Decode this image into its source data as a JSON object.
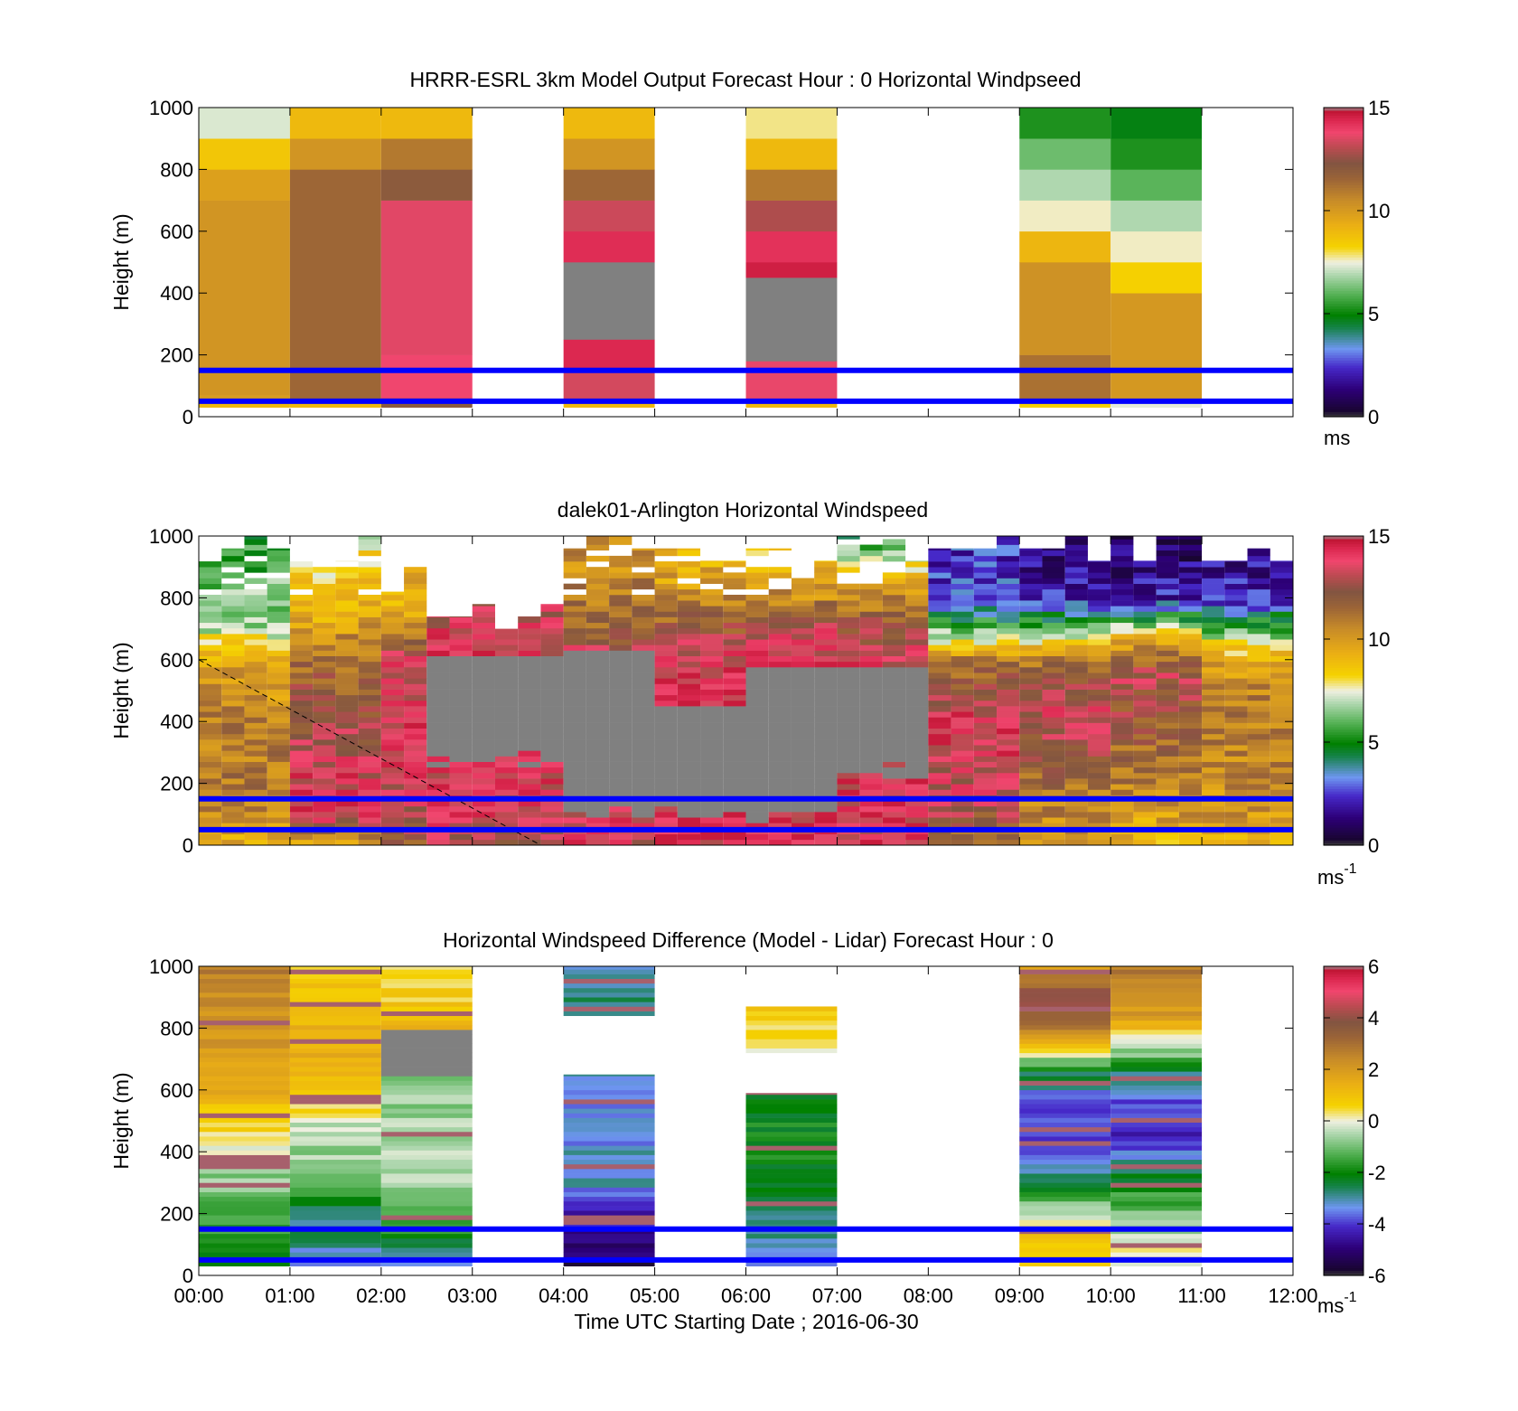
{
  "chart_data": [
    {
      "type": "heatmap",
      "title": "HRRR-ESRL 3km Model Output   Forecast Hour : 0 Horizontal Windpseed",
      "ylabel": "Height (m)",
      "ylim": [
        0,
        1000
      ],
      "yticks": [
        "0",
        "200",
        "400",
        "600",
        "800",
        "1000"
      ],
      "x_range": [
        "00:00",
        "12:00"
      ],
      "colorbar": {
        "min": 0,
        "max": 15,
        "ticks": [
          "0",
          "5",
          "10",
          "15"
        ],
        "unit": "ms"
      },
      "reference_lines_m": [
        50,
        150
      ],
      "columns": [
        {
          "start": "00:00",
          "end": "01:00",
          "levels": [
            [
              30,
              50,
              9
            ],
            [
              50,
              70,
              10
            ],
            [
              70,
              700,
              10.2
            ],
            [
              700,
              800,
              9.8
            ],
            [
              800,
              900,
              8.6
            ],
            [
              900,
              1000,
              7.3
            ]
          ]
        },
        {
          "start": "01:00",
          "end": "02:00",
          "levels": [
            [
              30,
              50,
              9
            ],
            [
              50,
              800,
              11.5
            ],
            [
              800,
              900,
              10.2
            ],
            [
              900,
              1000,
              9
            ]
          ]
        },
        {
          "start": "02:00",
          "end": "03:00",
          "levels": [
            [
              30,
              60,
              12
            ],
            [
              60,
              200,
              13.8
            ],
            [
              200,
              700,
              13.6
            ],
            [
              700,
              800,
              12
            ],
            [
              800,
              900,
              11
            ],
            [
              900,
              1000,
              9
            ]
          ]
        },
        {
          "start": "04:00",
          "end": "05:00",
          "levels": [
            [
              30,
              50,
              9
            ],
            [
              50,
              150,
              13.4
            ],
            [
              150,
              250,
              14.4
            ],
            [
              250,
              500,
              null
            ],
            [
              500,
              600,
              14.3
            ],
            [
              600,
              700,
              13.3
            ],
            [
              700,
              800,
              11.5
            ],
            [
              800,
              900,
              10.2
            ],
            [
              900,
              1000,
              9
            ]
          ]
        },
        {
          "start": "06:00",
          "end": "07:00",
          "levels": [
            [
              30,
              50,
              9
            ],
            [
              50,
              180,
              13.7
            ],
            [
              180,
              450,
              null
            ],
            [
              450,
              500,
              14.6
            ],
            [
              500,
              600,
              14.2
            ],
            [
              600,
              700,
              12.9
            ],
            [
              700,
              800,
              11
            ],
            [
              800,
              900,
              9
            ],
            [
              900,
              1000,
              7.8
            ]
          ]
        },
        {
          "start": "09:00",
          "end": "10:00",
          "levels": [
            [
              30,
              50,
              8.3
            ],
            [
              50,
              200,
              11.2
            ],
            [
              200,
              500,
              10.3
            ],
            [
              500,
              600,
              9.1
            ],
            [
              600,
              700,
              7.6
            ],
            [
              700,
              800,
              6.9
            ],
            [
              800,
              900,
              6.2
            ],
            [
              900,
              1000,
              5.3
            ]
          ]
        },
        {
          "start": "10:00",
          "end": "11:00",
          "levels": [
            [
              30,
              50,
              7.4
            ],
            [
              50,
              400,
              10.1
            ],
            [
              400,
              500,
              8.3
            ],
            [
              500,
              600,
              7.6
            ],
            [
              600,
              700,
              6.9
            ],
            [
              700,
              800,
              6
            ],
            [
              800,
              900,
              5.3
            ],
            [
              900,
              1000,
              4.8
            ]
          ]
        }
      ]
    },
    {
      "type": "heatmap",
      "title": "dalek01-Arlington  Horizontal Windspeed",
      "ylabel": "Height (m)",
      "ylim": [
        0,
        1000
      ],
      "yticks": [
        "0",
        "200",
        "400",
        "600",
        "800",
        "1000"
      ],
      "x_range": [
        "00:00",
        "12:00"
      ],
      "colorbar": {
        "min": 0,
        "max": 15,
        "ticks": [
          "0",
          "5",
          "10",
          "15"
        ],
        "unit": "ms",
        "unit_exp": "-1"
      },
      "reference_lines_m": [
        50,
        150
      ],
      "description_profile": [
        {
          "start": "00:00",
          "end": "01:00",
          "top_m": 1000,
          "profile": [
            [
              0,
              9.5
            ],
            [
              200,
              11
            ],
            [
              400,
              10.8
            ],
            [
              600,
              9.5
            ],
            [
              700,
              7
            ],
            [
              800,
              6.5
            ],
            [
              1000,
              5
            ]
          ]
        },
        {
          "start": "01:00",
          "end": "02:00",
          "top_m": 1000,
          "profile": [
            [
              0,
              9.5
            ],
            [
              100,
              14
            ],
            [
              250,
              13.5
            ],
            [
              400,
              12.5
            ],
            [
              600,
              11.5
            ],
            [
              700,
              10
            ],
            [
              800,
              9
            ],
            [
              1000,
              7.5
            ]
          ]
        },
        {
          "start": "02:00",
          "end": "02:30",
          "top_m": 900,
          "profile": [
            [
              0,
              12
            ],
            [
              200,
              13.5
            ],
            [
              400,
              13.8
            ],
            [
              600,
              13.5
            ],
            [
              700,
              10
            ],
            [
              900,
              9
            ]
          ]
        },
        {
          "start": "02:30",
          "end": "04:00",
          "top_m": 780,
          "gap_below_m": 240,
          "gap_above_m": 600,
          "profile": [
            [
              0,
              13
            ],
            [
              100,
              13.5
            ],
            [
              600,
              13.8
            ],
            [
              700,
              13.6
            ],
            [
              780,
              13
            ]
          ]
        },
        {
          "start": "04:00",
          "end": "05:00",
          "top_m": 1000,
          "gap_below_m": 60,
          "gap_above_m": 620,
          "profile": [
            [
              0,
              13.5
            ],
            [
              620,
              13.5
            ],
            [
              700,
              11.5
            ],
            [
              900,
              10.5
            ],
            [
              1000,
              10
            ]
          ]
        },
        {
          "start": "05:00",
          "end": "06:00",
          "top_m": 960,
          "gap_below_m": 70,
          "gap_above_m": 440,
          "profile": [
            [
              0,
              14
            ],
            [
              440,
              14.4
            ],
            [
              600,
              13.8
            ],
            [
              800,
              10.5
            ],
            [
              960,
              9
            ]
          ]
        },
        {
          "start": "06:00",
          "end": "07:00",
          "top_m": 960,
          "gap_below_m": 60,
          "gap_above_m": 560,
          "profile": [
            [
              0,
              14
            ],
            [
              560,
              14
            ],
            [
              700,
              13.5
            ],
            [
              800,
              10.5
            ],
            [
              960,
              8
            ]
          ]
        },
        {
          "start": "07:00",
          "end": "08:00",
          "top_m": 1000,
          "gap_below_m": 200,
          "gap_above_m": 560,
          "profile": [
            [
              0,
              13.8
            ],
            [
              560,
              14
            ],
            [
              700,
              12.5
            ],
            [
              850,
              9.5
            ],
            [
              1000,
              5
            ]
          ]
        },
        {
          "start": "08:00",
          "end": "09:00",
          "top_m": 1000,
          "profile": [
            [
              0,
              11.5
            ],
            [
              150,
              13
            ],
            [
              400,
              14
            ],
            [
              600,
              11
            ],
            [
              700,
              6
            ],
            [
              800,
              2.5
            ],
            [
              1000,
              2.5
            ]
          ]
        },
        {
          "start": "09:00",
          "end": "10:00",
          "top_m": 1000,
          "profile": [
            [
              0,
              9.5
            ],
            [
              150,
              11
            ],
            [
              450,
              13.5
            ],
            [
              600,
              11
            ],
            [
              700,
              6
            ],
            [
              800,
              2
            ],
            [
              1000,
              1.2
            ]
          ]
        },
        {
          "start": "10:00",
          "end": "11:00",
          "top_m": 1000,
          "profile": [
            [
              0,
              9
            ],
            [
              150,
              10.5
            ],
            [
              300,
              11.5
            ],
            [
              550,
              13
            ],
            [
              650,
              10
            ],
            [
              720,
              6
            ],
            [
              800,
              2
            ],
            [
              1000,
              1
            ]
          ]
        },
        {
          "start": "11:00",
          "end": "12:00",
          "top_m": 1000,
          "profile": [
            [
              0,
              9.5
            ],
            [
              200,
              10.5
            ],
            [
              450,
              11
            ],
            [
              600,
              9.5
            ],
            [
              700,
              6
            ],
            [
              800,
              2
            ],
            [
              1000,
              1.5
            ]
          ]
        }
      ],
      "dashed_line": {
        "from": [
          "00:00",
          600
        ],
        "to": [
          "03:45",
          0
        ]
      }
    },
    {
      "type": "heatmap",
      "title": "Horizontal Windspeed Difference (Model - Lidar) Forecast Hour : 0",
      "ylabel": "Height (m)",
      "xlabel": "Time UTC  Starting Date ; 2016-06-30",
      "ylim": [
        0,
        1000
      ],
      "yticks": [
        "0",
        "200",
        "400",
        "600",
        "800",
        "1000"
      ],
      "xticks": [
        "00:00",
        "01:00",
        "02:00",
        "03:00",
        "04:00",
        "05:00",
        "06:00",
        "07:00",
        "08:00",
        "09:00",
        "10:00",
        "11:00",
        "12:00"
      ],
      "colorbar": {
        "min": -6,
        "max": 6,
        "ticks": [
          "-6",
          "-4",
          "-2",
          "0",
          "2",
          "4",
          "6"
        ],
        "unit": "ms",
        "unit_exp": "-1"
      },
      "reference_lines_m": [
        50,
        150
      ],
      "columns": [
        {
          "start": "00:00",
          "end": "01:00",
          "bottom_m": 30,
          "top_m": 1000,
          "profile": [
            [
              30,
              -2
            ],
            [
              200,
              -1.5
            ],
            [
              350,
              -0.5
            ],
            [
              450,
              0.3
            ],
            [
              600,
              1.5
            ],
            [
              800,
              2.2
            ],
            [
              1000,
              2.6
            ]
          ]
        },
        {
          "start": "01:00",
          "end": "02:00",
          "bottom_m": 30,
          "top_m": 1000,
          "profile": [
            [
              30,
              -3.3
            ],
            [
              200,
              -2.5
            ],
            [
              350,
              -0.8
            ],
            [
              480,
              -0.3
            ],
            [
              600,
              1.2
            ],
            [
              800,
              1.5
            ],
            [
              1000,
              0.8
            ]
          ]
        },
        {
          "start": "02:00",
          "end": "03:00",
          "bottom_m": 30,
          "top_m": 1000,
          "profile": [
            [
              30,
              -3.5
            ],
            [
              200,
              -1
            ],
            [
              400,
              -0.3
            ],
            [
              600,
              -0.8
            ],
            [
              650,
              -0.6
            ],
            [
              790,
              null
            ],
            [
              800,
              1.2
            ],
            [
              1000,
              0.2
            ]
          ]
        },
        {
          "start": "04:00",
          "end": "05:00",
          "segments": [
            [
              30,
              650
            ],
            [
              840,
              1000
            ]
          ],
          "profile": [
            [
              30,
              -5.5
            ],
            [
              150,
              -4.5
            ],
            [
              250,
              -4
            ],
            [
              300,
              -3
            ],
            [
              500,
              -3.4
            ],
            [
              650,
              -3
            ],
            [
              840,
              -2.5
            ],
            [
              1000,
              -3.5
            ]
          ]
        },
        {
          "start": "06:00",
          "end": "07:00",
          "segments": [
            [
              30,
              590
            ],
            [
              720,
              870
            ]
          ],
          "profile": [
            [
              30,
              -3.3
            ],
            [
              200,
              -2.5
            ],
            [
              400,
              -1.8
            ],
            [
              590,
              -2.3
            ],
            [
              720,
              0.3
            ],
            [
              870,
              0.8
            ]
          ]
        },
        {
          "start": "09:00",
          "end": "10:00",
          "bottom_m": 30,
          "top_m": 1000,
          "profile": [
            [
              30,
              1
            ],
            [
              150,
              0.8
            ],
            [
              300,
              -2.5
            ],
            [
              400,
              -4.2
            ],
            [
              550,
              -4
            ],
            [
              650,
              -2.5
            ],
            [
              720,
              0
            ],
            [
              800,
              3
            ],
            [
              900,
              4.5
            ],
            [
              1000,
              1.5
            ]
          ]
        },
        {
          "start": "10:00",
          "end": "11:00",
          "bottom_m": 30,
          "top_m": 1000,
          "profile": [
            [
              30,
              0.3
            ],
            [
              150,
              -0.5
            ],
            [
              300,
              -2
            ],
            [
              450,
              -4.5
            ],
            [
              550,
              -4
            ],
            [
              650,
              -2.8
            ],
            [
              750,
              0
            ],
            [
              850,
              2
            ],
            [
              1000,
              2.8
            ]
          ]
        }
      ]
    }
  ]
}
